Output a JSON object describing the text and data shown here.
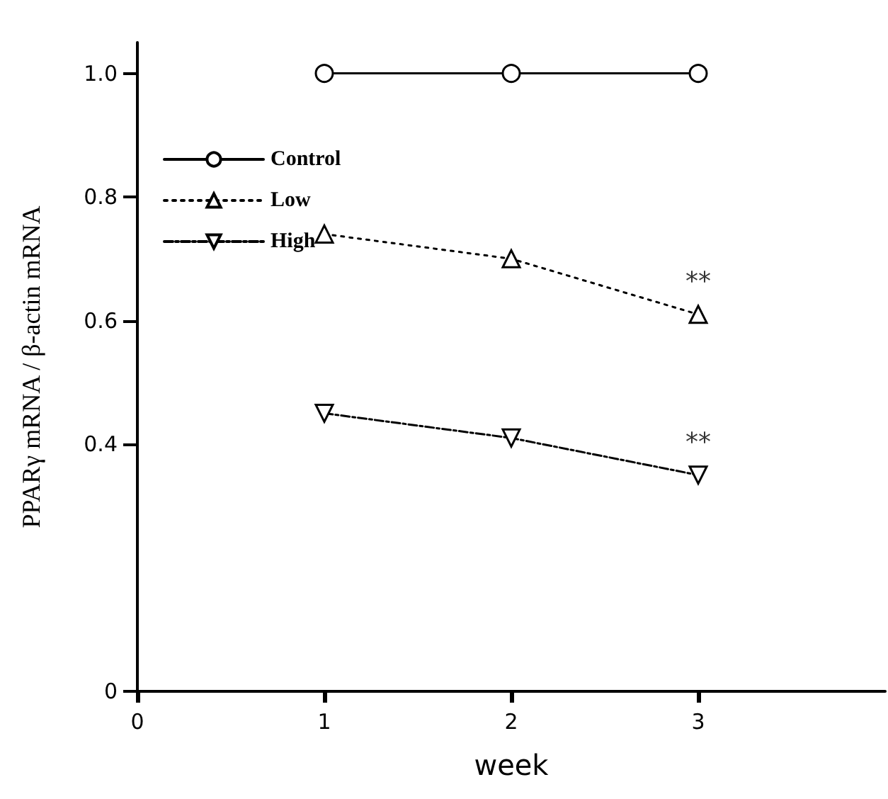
{
  "chart_data": {
    "type": "line",
    "xlabel": "week",
    "ylabel": "PPARγ mRNA / β-actin mRNA",
    "x": [
      1,
      2,
      3
    ],
    "series": [
      {
        "name": "Control",
        "color": "#000000",
        "values": [
          1.0,
          1.0,
          1.0
        ],
        "marker": "circle",
        "line_style": "solid"
      },
      {
        "name": "Low",
        "color": "#000000",
        "values": [
          0.74,
          0.7,
          0.61
        ],
        "marker": "triangle",
        "line_style": "dotted"
      },
      {
        "name": "High",
        "color": "#000000",
        "values": [
          0.45,
          0.41,
          0.35
        ],
        "marker": "triangle-down",
        "line_style": "dashed"
      }
    ],
    "annotations": [
      {
        "text": "**",
        "x": 3,
        "y": 0.61
      },
      {
        "text": "**",
        "x": 3,
        "y": 0.35
      }
    ],
    "xlim": [
      0,
      4
    ],
    "xticks": [
      0,
      1,
      2,
      3
    ],
    "ylim": [
      0,
      1.05
    ],
    "yticks": [
      0,
      0.4,
      0.6,
      0.8,
      {
        "value": 1,
        "label": "1.0"
      }
    ],
    "grid": false,
    "legend": "top left"
  }
}
